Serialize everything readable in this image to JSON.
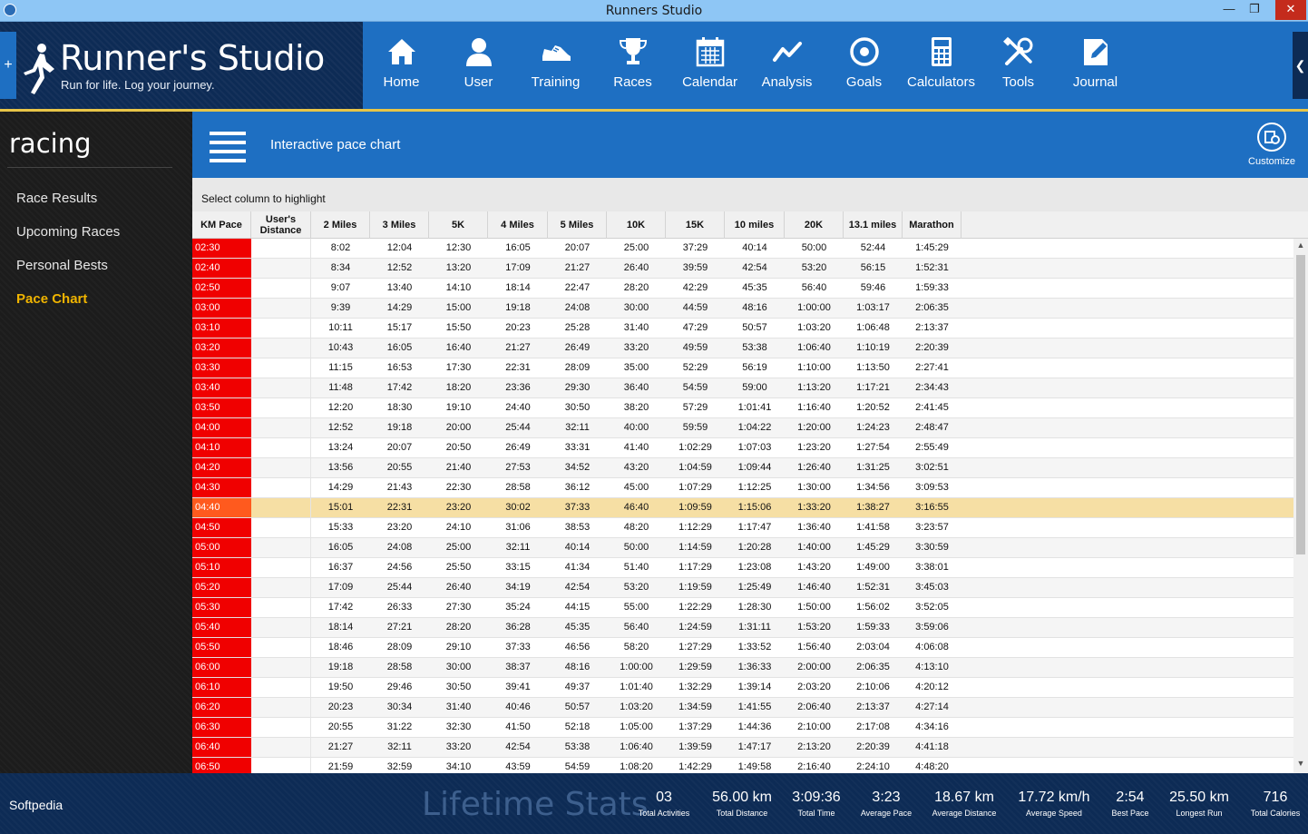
{
  "window": {
    "title": "Runners Studio"
  },
  "brand": {
    "name": "Runner's Studio",
    "tagline": "Run for life. Log your journey."
  },
  "nav": [
    {
      "label": "Home",
      "icon": "home-icon"
    },
    {
      "label": "User",
      "icon": "user-icon"
    },
    {
      "label": "Training",
      "icon": "shoe-icon"
    },
    {
      "label": "Races",
      "icon": "trophy-icon"
    },
    {
      "label": "Calendar",
      "icon": "calendar-icon"
    },
    {
      "label": "Analysis",
      "icon": "analysis-icon"
    },
    {
      "label": "Goals",
      "icon": "target-icon"
    },
    {
      "label": "Calculators",
      "icon": "calculator-icon"
    },
    {
      "label": "Tools",
      "icon": "tools-icon"
    },
    {
      "label": "Journal",
      "icon": "journal-icon"
    }
  ],
  "sidebar": {
    "section": "racing",
    "items": [
      {
        "label": "Race Results"
      },
      {
        "label": "Upcoming Races"
      },
      {
        "label": "Personal Bests"
      },
      {
        "label": "Pace Chart",
        "active": true
      }
    ]
  },
  "page": {
    "title": "Interactive pace chart",
    "customize_label": "Customize",
    "hint": "Select column to highlight"
  },
  "table": {
    "columns": [
      "KM Pace",
      "User's Distance",
      "2 Miles",
      "3 Miles",
      "5K",
      "4 Miles",
      "5 Miles",
      "10K",
      "15K",
      "10 miles",
      "20K",
      "13.1 miles",
      "Marathon"
    ],
    "highlighted_row": "04:40",
    "highlight_color": "#f6dfa4",
    "pace_color": "#f00000",
    "rows": [
      [
        "02:30",
        "",
        "8:02",
        "12:04",
        "12:30",
        "16:05",
        "20:07",
        "25:00",
        "37:29",
        "40:14",
        "50:00",
        "52:44",
        "1:45:29"
      ],
      [
        "02:40",
        "",
        "8:34",
        "12:52",
        "13:20",
        "17:09",
        "21:27",
        "26:40",
        "39:59",
        "42:54",
        "53:20",
        "56:15",
        "1:52:31"
      ],
      [
        "02:50",
        "",
        "9:07",
        "13:40",
        "14:10",
        "18:14",
        "22:47",
        "28:20",
        "42:29",
        "45:35",
        "56:40",
        "59:46",
        "1:59:33"
      ],
      [
        "03:00",
        "",
        "9:39",
        "14:29",
        "15:00",
        "19:18",
        "24:08",
        "30:00",
        "44:59",
        "48:16",
        "1:00:00",
        "1:03:17",
        "2:06:35"
      ],
      [
        "03:10",
        "",
        "10:11",
        "15:17",
        "15:50",
        "20:23",
        "25:28",
        "31:40",
        "47:29",
        "50:57",
        "1:03:20",
        "1:06:48",
        "2:13:37"
      ],
      [
        "03:20",
        "",
        "10:43",
        "16:05",
        "16:40",
        "21:27",
        "26:49",
        "33:20",
        "49:59",
        "53:38",
        "1:06:40",
        "1:10:19",
        "2:20:39"
      ],
      [
        "03:30",
        "",
        "11:15",
        "16:53",
        "17:30",
        "22:31",
        "28:09",
        "35:00",
        "52:29",
        "56:19",
        "1:10:00",
        "1:13:50",
        "2:27:41"
      ],
      [
        "03:40",
        "",
        "11:48",
        "17:42",
        "18:20",
        "23:36",
        "29:30",
        "36:40",
        "54:59",
        "59:00",
        "1:13:20",
        "1:17:21",
        "2:34:43"
      ],
      [
        "03:50",
        "",
        "12:20",
        "18:30",
        "19:10",
        "24:40",
        "30:50",
        "38:20",
        "57:29",
        "1:01:41",
        "1:16:40",
        "1:20:52",
        "2:41:45"
      ],
      [
        "04:00",
        "",
        "12:52",
        "19:18",
        "20:00",
        "25:44",
        "32:11",
        "40:00",
        "59:59",
        "1:04:22",
        "1:20:00",
        "1:24:23",
        "2:48:47"
      ],
      [
        "04:10",
        "",
        "13:24",
        "20:07",
        "20:50",
        "26:49",
        "33:31",
        "41:40",
        "1:02:29",
        "1:07:03",
        "1:23:20",
        "1:27:54",
        "2:55:49"
      ],
      [
        "04:20",
        "",
        "13:56",
        "20:55",
        "21:40",
        "27:53",
        "34:52",
        "43:20",
        "1:04:59",
        "1:09:44",
        "1:26:40",
        "1:31:25",
        "3:02:51"
      ],
      [
        "04:30",
        "",
        "14:29",
        "21:43",
        "22:30",
        "28:58",
        "36:12",
        "45:00",
        "1:07:29",
        "1:12:25",
        "1:30:00",
        "1:34:56",
        "3:09:53"
      ],
      [
        "04:40",
        "",
        "15:01",
        "22:31",
        "23:20",
        "30:02",
        "37:33",
        "46:40",
        "1:09:59",
        "1:15:06",
        "1:33:20",
        "1:38:27",
        "3:16:55"
      ],
      [
        "04:50",
        "",
        "15:33",
        "23:20",
        "24:10",
        "31:06",
        "38:53",
        "48:20",
        "1:12:29",
        "1:17:47",
        "1:36:40",
        "1:41:58",
        "3:23:57"
      ],
      [
        "05:00",
        "",
        "16:05",
        "24:08",
        "25:00",
        "32:11",
        "40:14",
        "50:00",
        "1:14:59",
        "1:20:28",
        "1:40:00",
        "1:45:29",
        "3:30:59"
      ],
      [
        "05:10",
        "",
        "16:37",
        "24:56",
        "25:50",
        "33:15",
        "41:34",
        "51:40",
        "1:17:29",
        "1:23:08",
        "1:43:20",
        "1:49:00",
        "3:38:01"
      ],
      [
        "05:20",
        "",
        "17:09",
        "25:44",
        "26:40",
        "34:19",
        "42:54",
        "53:20",
        "1:19:59",
        "1:25:49",
        "1:46:40",
        "1:52:31",
        "3:45:03"
      ],
      [
        "05:30",
        "",
        "17:42",
        "26:33",
        "27:30",
        "35:24",
        "44:15",
        "55:00",
        "1:22:29",
        "1:28:30",
        "1:50:00",
        "1:56:02",
        "3:52:05"
      ],
      [
        "05:40",
        "",
        "18:14",
        "27:21",
        "28:20",
        "36:28",
        "45:35",
        "56:40",
        "1:24:59",
        "1:31:11",
        "1:53:20",
        "1:59:33",
        "3:59:06"
      ],
      [
        "05:50",
        "",
        "18:46",
        "28:09",
        "29:10",
        "37:33",
        "46:56",
        "58:20",
        "1:27:29",
        "1:33:52",
        "1:56:40",
        "2:03:04",
        "4:06:08"
      ],
      [
        "06:00",
        "",
        "19:18",
        "28:58",
        "30:00",
        "38:37",
        "48:16",
        "1:00:00",
        "1:29:59",
        "1:36:33",
        "2:00:00",
        "2:06:35",
        "4:13:10"
      ],
      [
        "06:10",
        "",
        "19:50",
        "29:46",
        "30:50",
        "39:41",
        "49:37",
        "1:01:40",
        "1:32:29",
        "1:39:14",
        "2:03:20",
        "2:10:06",
        "4:20:12"
      ],
      [
        "06:20",
        "",
        "20:23",
        "30:34",
        "31:40",
        "40:46",
        "50:57",
        "1:03:20",
        "1:34:59",
        "1:41:55",
        "2:06:40",
        "2:13:37",
        "4:27:14"
      ],
      [
        "06:30",
        "",
        "20:55",
        "31:22",
        "32:30",
        "41:50",
        "52:18",
        "1:05:00",
        "1:37:29",
        "1:44:36",
        "2:10:00",
        "2:17:08",
        "4:34:16"
      ],
      [
        "06:40",
        "",
        "21:27",
        "32:11",
        "33:20",
        "42:54",
        "53:38",
        "1:06:40",
        "1:39:59",
        "1:47:17",
        "2:13:20",
        "2:20:39",
        "4:41:18"
      ],
      [
        "06:50",
        "",
        "21:59",
        "32:59",
        "34:10",
        "43:59",
        "54:59",
        "1:08:20",
        "1:42:29",
        "1:49:58",
        "2:16:40",
        "2:24:10",
        "4:48:20"
      ]
    ]
  },
  "footer": {
    "brand": "Softpedia",
    "lifetime_label": "Lifetime Stats",
    "stats": [
      {
        "value": "03",
        "label": "Total Activities"
      },
      {
        "value": "56.00 km",
        "label": "Total Distance"
      },
      {
        "value": "3:09:36",
        "label": "Total Time"
      },
      {
        "value": "3:23",
        "label": "Average Pace"
      },
      {
        "value": "18.67 km",
        "label": "Average Distance"
      },
      {
        "value": "17.72 km/h",
        "label": "Average Speed"
      },
      {
        "value": "2:54",
        "label": "Best Pace"
      },
      {
        "value": "25.50 km",
        "label": "Longest Run"
      },
      {
        "value": "716",
        "label": "Total Calories"
      }
    ]
  }
}
